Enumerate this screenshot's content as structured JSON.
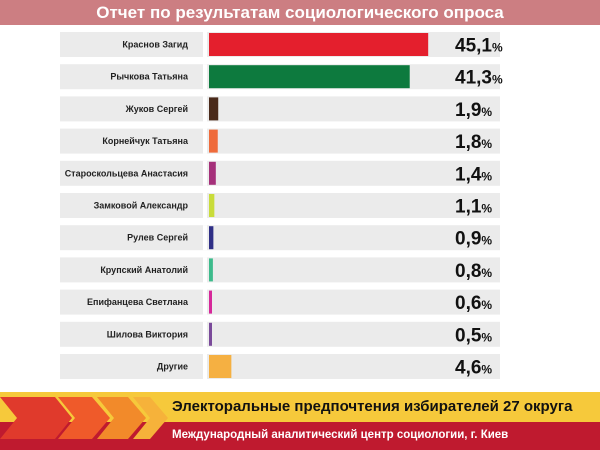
{
  "title": "Отчет по результатам социологического опроса",
  "chart_data": {
    "type": "bar",
    "orientation": "horizontal",
    "title": "Отчет по результатам социологического опроса",
    "value_suffix": "%",
    "xlim": [
      0,
      50
    ],
    "categories": [
      "Краснов Загид",
      "Рычкова Татьяна",
      "Жуков Сергей",
      "Корнейчук Татьяна",
      "Староскольцева Анастасия",
      "Замковой Александр",
      "Рулев Сергей",
      "Крупский Анатолий",
      "Епифанцева Светлана",
      "Шилова Виктория",
      "Другие"
    ],
    "values": [
      45.1,
      41.3,
      1.9,
      1.8,
      1.4,
      1.1,
      0.9,
      0.8,
      0.6,
      0.5,
      4.6
    ],
    "value_labels": [
      "45,1",
      "41,3",
      "1,9",
      "1,8",
      "1,4",
      "1,1",
      "0,9",
      "0,8",
      "0,6",
      "0,5",
      "4,6"
    ],
    "colors": [
      "#e41f2d",
      "#0d7a3e",
      "#4a2a1a",
      "#ef6b3b",
      "#a5307a",
      "#c9dc3a",
      "#2f2f86",
      "#3dbb8c",
      "#d6289a",
      "#7a4a9a",
      "#f5b042"
    ]
  },
  "footer": {
    "line1": "Электоральные предпочтения избирателей 27 округа",
    "line2": "Международный аналитический центр социологии, г. Киев"
  }
}
